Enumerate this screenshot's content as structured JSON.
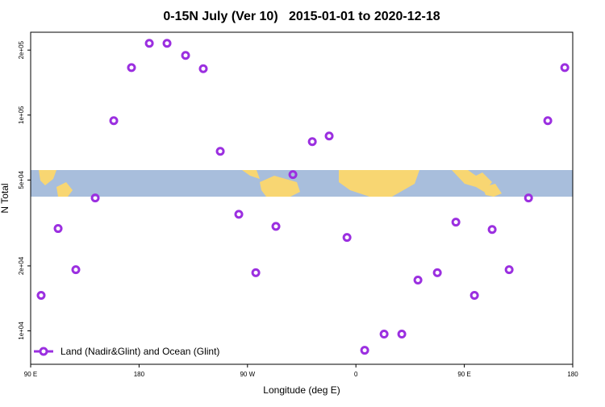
{
  "chart_data": {
    "type": "scatter",
    "title": "0-15N July (Ver 10)   2015-01-01 to 2020-12-18",
    "x_label": "Longitude (deg E)",
    "y_label": "N Total",
    "xlim": [
      90,
      540
    ],
    "ylim": [
      7000,
      242000
    ],
    "yscale": "log",
    "xticks": [
      {
        "value": 90,
        "label": "90 E"
      },
      {
        "value": 180,
        "label": "180"
      },
      {
        "value": 270,
        "label": "90 W"
      },
      {
        "value": 360,
        "label": "0"
      },
      {
        "value": 450,
        "label": "90 E"
      },
      {
        "value": 540,
        "label": "180"
      }
    ],
    "yticks": [
      {
        "value": 10000,
        "label": "1e+04"
      },
      {
        "value": 20000,
        "label": "2e+04"
      },
      {
        "value": 50000,
        "label": "5e+04"
      },
      {
        "value": 100000,
        "label": "1e+05"
      },
      {
        "value": 200000,
        "label": "2e+05"
      }
    ],
    "legend": "lower left",
    "series": [
      {
        "name": "Land (Nadir&Glint) and Ocean (Glint)",
        "color": "#9b2fe0",
        "x": [
          98.7,
          112.8,
          127.5,
          143.6,
          159,
          173.7,
          188.5,
          203.2,
          218.6,
          233.3,
          247.4,
          262.8,
          276.9,
          293.6,
          307.7,
          323.8,
          337.8,
          352.6,
          367.3,
          383.4,
          398.1,
          411.5,
          427.6,
          443,
          458.4,
          473.1,
          487.2,
          503.3,
          519.3,
          533.4
        ],
        "values": [
          14600,
          29800,
          19200,
          41300,
          94200,
          166000,
          215000,
          215000,
          189000,
          164000,
          67900,
          34700,
          18600,
          30500,
          53000,
          75300,
          80000,
          27100,
          8130,
          9660,
          9660,
          17200,
          18600,
          31900,
          14600,
          29500,
          19200,
          41300,
          94200,
          166000
        ]
      }
    ]
  }
}
